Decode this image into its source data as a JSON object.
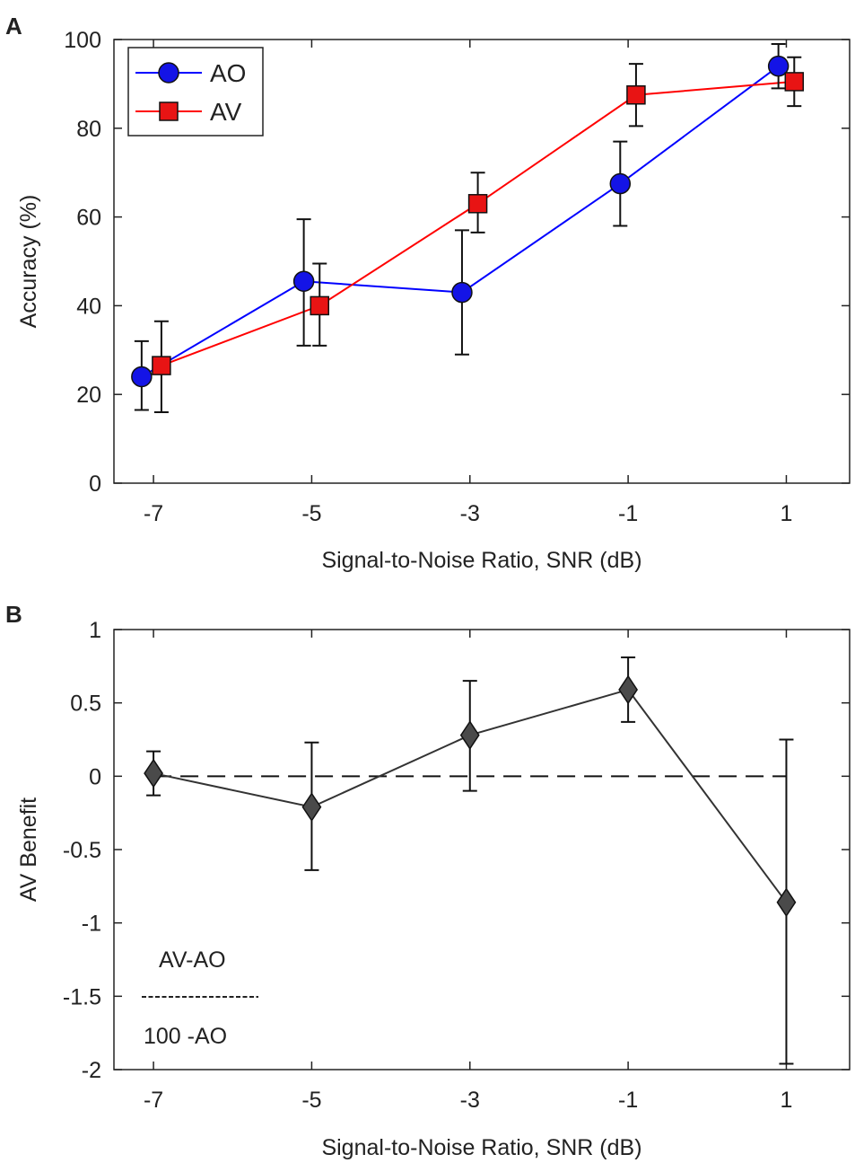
{
  "chart_data": [
    {
      "panel_label": "A",
      "type": "line",
      "title": "",
      "xlabel": "Signal-to-Noise Ratio, SNR (dB)",
      "ylabel": "Accuracy (%)",
      "xlim": [
        -7.5,
        1.8
      ],
      "ylim": [
        0,
        100
      ],
      "xticks": [
        "-7",
        "-5",
        "-3",
        "-1",
        "1"
      ],
      "yticks": [
        "0",
        "20",
        "40",
        "60",
        "80",
        "100"
      ],
      "x": [
        -7,
        -5,
        -3,
        -1,
        1
      ],
      "legend": {
        "placement": "top-left",
        "entries": [
          "AO",
          "AV"
        ]
      },
      "series": [
        {
          "name": "AO",
          "color": "#0000ff",
          "marker": "circle",
          "marker_fill": "#1414e6",
          "x_display": [
            -7.15,
            -5.1,
            -3.1,
            -1.1,
            0.9
          ],
          "values": [
            24,
            45.5,
            43,
            67.5,
            94
          ],
          "err_low": [
            16.5,
            31,
            29,
            58,
            89
          ],
          "err_high": [
            32,
            59.5,
            57,
            77,
            99
          ]
        },
        {
          "name": "AV",
          "color": "#ff0000",
          "marker": "square",
          "marker_fill": "#e81414",
          "x_display": [
            -6.9,
            -4.9,
            -2.9,
            -0.9,
            1.1
          ],
          "values": [
            26.5,
            40,
            63,
            87.5,
            90.5
          ],
          "err_low": [
            16,
            31,
            56.5,
            80.5,
            85
          ],
          "err_high": [
            36.5,
            49.5,
            70,
            94.5,
            96
          ]
        }
      ]
    },
    {
      "panel_label": "B",
      "type": "line",
      "title": "",
      "xlabel": "Signal-to-Noise Ratio, SNR (dB)",
      "ylabel": "AV Benefit",
      "xlim": [
        -7.5,
        1.8
      ],
      "ylim": [
        -2,
        1
      ],
      "xticks": [
        "-7",
        "-5",
        "-3",
        "-1",
        "1"
      ],
      "yticks": [
        "-2",
        "-1.5",
        "-1",
        "-0.5",
        "0",
        "0.5",
        "1"
      ],
      "x": [
        -7,
        -5,
        -3,
        -1,
        1
      ],
      "reference_line": {
        "y": 0,
        "style": "dashed"
      },
      "annotation": {
        "numerator": "AV-AO",
        "denominator": "100 -AO"
      },
      "series": [
        {
          "name": "AV benefit",
          "color": "#333333",
          "marker": "diamond",
          "marker_fill": "#4a4a4a",
          "x_display": [
            -7,
            -5,
            -3,
            -1,
            1
          ],
          "values": [
            0.02,
            -0.21,
            0.28,
            0.59,
            -0.86
          ],
          "err_low": [
            -0.13,
            -0.64,
            -0.1,
            0.37,
            -1.96
          ],
          "err_high": [
            0.17,
            0.23,
            0.65,
            0.81,
            0.25
          ]
        }
      ]
    }
  ]
}
